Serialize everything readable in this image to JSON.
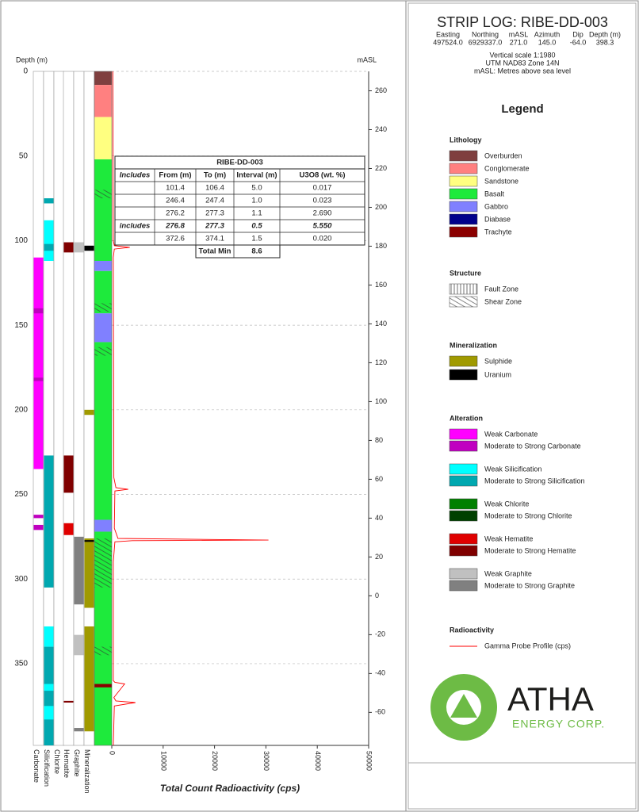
{
  "header": {
    "title": "STRIP LOG: RIBE-DD-003",
    "columns": [
      "Easting",
      "Northing",
      "mASL",
      "Azimuth",
      "Dip",
      "Depth (m)"
    ],
    "values": [
      "497524.0",
      "6929337.0",
      "271.0",
      "145.0",
      "-64.0",
      "398.3"
    ],
    "notes": [
      "Vertical scale 1:1980",
      "UTM NAD83 Zone 14N",
      "mASL: Metres above sea level"
    ]
  },
  "legend": {
    "title": "Legend",
    "groups": [
      {
        "title": "Lithology",
        "items": [
          {
            "label": "Overburden",
            "color": "#7f3f3f"
          },
          {
            "label": "Conglomerate",
            "color": "#ff8080"
          },
          {
            "label": "Sandstone",
            "color": "#ffff80"
          },
          {
            "label": "Basalt",
            "color": "#1eea3c"
          },
          {
            "label": "Gabbro",
            "color": "#8080ff"
          },
          {
            "label": "Diabase",
            "color": "#00008b"
          },
          {
            "label": "Trachyte",
            "color": "#8b0000"
          }
        ]
      },
      {
        "title": "Structure",
        "items": [
          {
            "label": "Fault Zone",
            "pattern": "vertical"
          },
          {
            "label": "Shear Zone",
            "pattern": "hatch"
          }
        ]
      },
      {
        "title": "Mineralization",
        "items": [
          {
            "label": "Sulphide",
            "color": "#a09a00"
          },
          {
            "label": "Uranium",
            "color": "#000000"
          }
        ]
      },
      {
        "title": "Alteration",
        "items": [
          {
            "label": "Weak Carbonate",
            "color": "#ff00ff"
          },
          {
            "label": "Moderate to Strong Carbonate",
            "color": "#c000c0"
          },
          {
            "label": "Weak Silicification",
            "color": "#00ffff"
          },
          {
            "label": "Moderate to Strong Silicification",
            "color": "#00a8b0"
          },
          {
            "label": "Weak Chlorite",
            "color": "#008000"
          },
          {
            "label": "Moderate to Strong Chlorite",
            "color": "#004000"
          },
          {
            "label": "Weak Hematite",
            "color": "#e00000"
          },
          {
            "label": "Moderate to Strong Hematite",
            "color": "#800000"
          },
          {
            "label": "Weak Graphite",
            "color": "#c0c0c0"
          },
          {
            "label": "Moderate to Strong Graphite",
            "color": "#808080"
          }
        ]
      },
      {
        "title": "Radioactivity",
        "items": [
          {
            "label": "Gamma Probe Profile (cps)",
            "color": "#ff0000",
            "symbol": "line"
          }
        ]
      }
    ]
  },
  "table": {
    "title": "RIBE-DD-003",
    "header": [
      "Includes",
      "From (m)",
      "To (m)",
      "Interval (m)",
      "U3O8 (wt. %)"
    ],
    "rows": [
      {
        "cells": [
          "101.4",
          "106.4",
          "5.0",
          "0.017"
        ]
      },
      {
        "cells": [
          "246.4",
          "247.4",
          "1.0",
          "0.023"
        ]
      },
      {
        "cells": [
          "276.2",
          "277.3",
          "1.1",
          "2.690"
        ]
      },
      {
        "label": "includes",
        "cells": [
          "276.8",
          "277.3",
          "0.5",
          "5.550"
        ],
        "emphasis": true
      },
      {
        "cells": [
          "372.6",
          "374.1",
          "1.5",
          "0.020"
        ]
      }
    ],
    "total": {
      "label": "Total Min",
      "value": "8.6"
    }
  },
  "chart_data": {
    "type": "strip-log",
    "ylabel": "Depth (m)",
    "y2label": "mASL",
    "xlabel": "Total Count Radioactivity (cps)",
    "ylim": [
      0,
      398.3
    ],
    "yticks": [
      0,
      50,
      100,
      150,
      200,
      250,
      300,
      350
    ],
    "y2lim": [
      270,
      -77
    ],
    "y2ticks": [
      260,
      240,
      220,
      200,
      180,
      160,
      140,
      120,
      100,
      80,
      60,
      40,
      20,
      0,
      -20,
      -40,
      -60
    ],
    "xlim": [
      0,
      50000
    ],
    "xticks": [
      0,
      10000,
      20000,
      30000,
      40000,
      50000
    ],
    "grid": true,
    "columns": [
      {
        "name": "Carbonate",
        "intervals": [
          {
            "from": 110,
            "to": 235,
            "color": "#ff00ff"
          },
          {
            "from": 140,
            "to": 143,
            "color": "#c000c0"
          },
          {
            "from": 181,
            "to": 183,
            "color": "#c000c0"
          },
          {
            "from": 262,
            "to": 264,
            "color": "#c000c0"
          },
          {
            "from": 268,
            "to": 271,
            "color": "#c000c0"
          }
        ]
      },
      {
        "name": "Silicification",
        "intervals": [
          {
            "from": 75,
            "to": 78,
            "color": "#00a8b0"
          },
          {
            "from": 88,
            "to": 112,
            "color": "#00ffff"
          },
          {
            "from": 102,
            "to": 106,
            "color": "#00a8b0"
          },
          {
            "from": 227,
            "to": 305,
            "color": "#00a8b0"
          },
          {
            "from": 328,
            "to": 340,
            "color": "#00ffff"
          },
          {
            "from": 340,
            "to": 398.3,
            "color": "#00a8b0"
          },
          {
            "from": 362,
            "to": 366,
            "color": "#00ffff"
          },
          {
            "from": 375,
            "to": 383,
            "color": "#00ffff"
          }
        ]
      },
      {
        "name": "Chlorite",
        "intervals": []
      },
      {
        "name": "Hematite",
        "intervals": [
          {
            "from": 101,
            "to": 107,
            "color": "#800000"
          },
          {
            "from": 227,
            "to": 249,
            "color": "#800000"
          },
          {
            "from": 267,
            "to": 274,
            "color": "#e00000"
          },
          {
            "from": 372,
            "to": 373,
            "color": "#800000"
          }
        ]
      },
      {
        "name": "Graphite",
        "intervals": [
          {
            "from": 101,
            "to": 107,
            "color": "#c0c0c0"
          },
          {
            "from": 275,
            "to": 315,
            "color": "#808080"
          },
          {
            "from": 333,
            "to": 345,
            "color": "#c0c0c0"
          },
          {
            "from": 388,
            "to": 390,
            "color": "#808080"
          }
        ]
      },
      {
        "name": "Mineralization",
        "intervals": [
          {
            "from": 200,
            "to": 203,
            "color": "#a09a00"
          },
          {
            "from": 103,
            "to": 106,
            "color": "#000000"
          },
          {
            "from": 276,
            "to": 317,
            "color": "#a09a00"
          },
          {
            "from": 328,
            "to": 390,
            "color": "#a09a00"
          },
          {
            "from": 277,
            "to": 278,
            "color": "#000000"
          }
        ]
      }
    ],
    "lithology": [
      {
        "from": 0,
        "to": 8,
        "color": "#7f3f3f"
      },
      {
        "from": 8,
        "to": 27,
        "color": "#ff8080"
      },
      {
        "from": 27,
        "to": 52,
        "color": "#ffff80"
      },
      {
        "from": 52,
        "to": 112,
        "color": "#1eea3c"
      },
      {
        "from": 112,
        "to": 118,
        "color": "#8080ff"
      },
      {
        "from": 118,
        "to": 143,
        "color": "#1eea3c"
      },
      {
        "from": 143,
        "to": 160,
        "color": "#8080ff"
      },
      {
        "from": 160,
        "to": 265,
        "color": "#1eea3c"
      },
      {
        "from": 265,
        "to": 272,
        "color": "#8080ff"
      },
      {
        "from": 272,
        "to": 398.3,
        "color": "#1eea3c"
      },
      {
        "from": 362,
        "to": 364,
        "color": "#8b0000"
      }
    ],
    "structure": [
      {
        "from": 70,
        "to": 75,
        "pattern": "hatch"
      },
      {
        "from": 137,
        "to": 142,
        "pattern": "hatch"
      },
      {
        "from": 163,
        "to": 168,
        "pattern": "hatch"
      },
      {
        "from": 276,
        "to": 305,
        "pattern": "hatch"
      },
      {
        "from": 340,
        "to": 345,
        "pattern": "hatch"
      }
    ],
    "gamma": {
      "color": "#ff0000",
      "depth": [
        0,
        100,
        103,
        104,
        105,
        110,
        240,
        246,
        247,
        248,
        270,
        276,
        277,
        277.3,
        278,
        290,
        360,
        361,
        362,
        370,
        372,
        373,
        375,
        398.3
      ],
      "values": [
        200,
        300,
        500,
        3500,
        500,
        300,
        400,
        800,
        3200,
        600,
        500,
        1200,
        30500,
        4000,
        600,
        300,
        300,
        600,
        2500,
        400,
        800,
        4600,
        500,
        300
      ]
    }
  }
}
